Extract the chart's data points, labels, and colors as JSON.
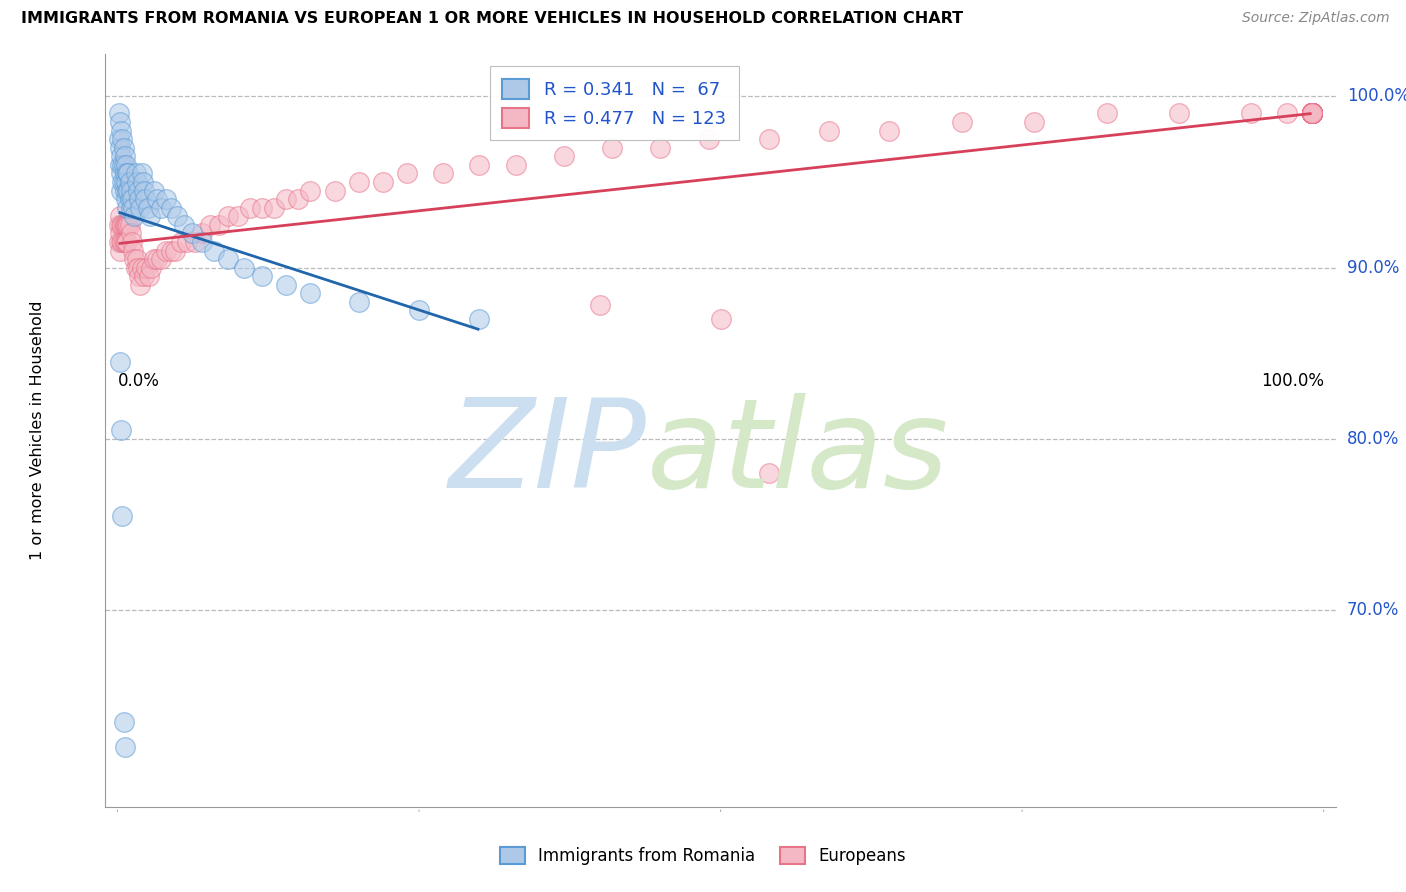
{
  "title": "IMMIGRANTS FROM ROMANIA VS EUROPEAN 1 OR MORE VEHICLES IN HOUSEHOLD CORRELATION CHART",
  "source": "Source: ZipAtlas.com",
  "ylabel": "1 or more Vehicles in Household",
  "ytick_labels": [
    "100.0%",
    "90.0%",
    "80.0%",
    "70.0%"
  ],
  "ytick_values": [
    1.0,
    0.9,
    0.8,
    0.7
  ],
  "xlim": [
    -0.01,
    1.01
  ],
  "ylim": [
    0.585,
    1.025
  ],
  "romania_color": "#5b9bd5",
  "romania_fill": "#aec9e8",
  "european_color": "#e8748a",
  "european_fill": "#f4b8c4",
  "trend_romania_color": "#2166ac",
  "trend_european_color": "#d6405a",
  "romania_R": 0.341,
  "romania_N": 67,
  "european_R": 0.477,
  "european_N": 123,
  "legend_label_romania": "Immigrants from Romania",
  "legend_label_european": "Europeans",
  "marker_size": 200,
  "marker_alpha": 0.55,
  "grid_color": "#bbbbbb",
  "romania_x": [
    0.001,
    0.001,
    0.002,
    0.002,
    0.002,
    0.003,
    0.003,
    0.003,
    0.003,
    0.004,
    0.004,
    0.004,
    0.005,
    0.005,
    0.005,
    0.006,
    0.006,
    0.006,
    0.007,
    0.007,
    0.007,
    0.008,
    0.008,
    0.008,
    0.009,
    0.009,
    0.01,
    0.01,
    0.011,
    0.011,
    0.012,
    0.013,
    0.014,
    0.015,
    0.016,
    0.017,
    0.018,
    0.019,
    0.02,
    0.021,
    0.022,
    0.023,
    0.025,
    0.027,
    0.03,
    0.033,
    0.036,
    0.04,
    0.044,
    0.049,
    0.055,
    0.062,
    0.07,
    0.08,
    0.092,
    0.105,
    0.12,
    0.14,
    0.16,
    0.2,
    0.25,
    0.3,
    0.002,
    0.003,
    0.004,
    0.005,
    0.006
  ],
  "romania_y": [
    0.99,
    0.975,
    0.985,
    0.97,
    0.96,
    0.98,
    0.965,
    0.955,
    0.945,
    0.975,
    0.96,
    0.95,
    0.97,
    0.96,
    0.95,
    0.965,
    0.955,
    0.945,
    0.96,
    0.95,
    0.94,
    0.955,
    0.945,
    0.935,
    0.955,
    0.945,
    0.95,
    0.94,
    0.945,
    0.935,
    0.94,
    0.935,
    0.93,
    0.955,
    0.95,
    0.945,
    0.94,
    0.935,
    0.955,
    0.95,
    0.945,
    0.94,
    0.935,
    0.93,
    0.945,
    0.94,
    0.935,
    0.94,
    0.935,
    0.93,
    0.925,
    0.92,
    0.915,
    0.91,
    0.905,
    0.9,
    0.895,
    0.89,
    0.885,
    0.88,
    0.875,
    0.87,
    0.845,
    0.805,
    0.755,
    0.635,
    0.62
  ],
  "european_x": [
    0.001,
    0.001,
    0.002,
    0.002,
    0.002,
    0.003,
    0.003,
    0.004,
    0.004,
    0.005,
    0.005,
    0.006,
    0.006,
    0.007,
    0.007,
    0.008,
    0.008,
    0.009,
    0.01,
    0.011,
    0.012,
    0.013,
    0.014,
    0.015,
    0.016,
    0.017,
    0.018,
    0.019,
    0.02,
    0.022,
    0.024,
    0.026,
    0.028,
    0.03,
    0.033,
    0.036,
    0.04,
    0.044,
    0.048,
    0.053,
    0.058,
    0.064,
    0.07,
    0.077,
    0.084,
    0.092,
    0.1,
    0.11,
    0.12,
    0.13,
    0.14,
    0.15,
    0.16,
    0.18,
    0.2,
    0.22,
    0.24,
    0.27,
    0.3,
    0.33,
    0.37,
    0.41,
    0.45,
    0.49,
    0.54,
    0.59,
    0.64,
    0.7,
    0.76,
    0.82,
    0.88,
    0.94,
    0.97,
    0.99,
    0.99,
    0.99,
    0.99,
    0.99,
    0.99,
    0.99,
    0.99,
    0.99,
    0.99,
    0.99,
    0.99,
    0.99,
    0.99,
    0.99,
    0.99,
    0.99,
    0.99,
    0.99,
    0.99,
    0.99,
    0.99,
    0.99,
    0.99,
    0.99,
    0.99,
    0.99,
    0.99,
    0.99,
    0.99,
    0.99,
    0.99,
    0.99,
    0.99,
    0.99,
    0.99,
    0.99,
    0.99,
    0.99,
    0.99,
    0.99,
    0.99,
    0.99,
    0.99,
    0.99,
    0.99,
    0.99,
    0.4,
    0.5,
    0.54
  ],
  "european_y": [
    0.925,
    0.915,
    0.93,
    0.92,
    0.91,
    0.925,
    0.915,
    0.925,
    0.915,
    0.925,
    0.915,
    0.925,
    0.915,
    0.925,
    0.915,
    0.925,
    0.915,
    0.925,
    0.925,
    0.92,
    0.915,
    0.91,
    0.905,
    0.9,
    0.905,
    0.9,
    0.895,
    0.89,
    0.9,
    0.895,
    0.9,
    0.895,
    0.9,
    0.905,
    0.905,
    0.905,
    0.91,
    0.91,
    0.91,
    0.915,
    0.915,
    0.915,
    0.92,
    0.925,
    0.925,
    0.93,
    0.93,
    0.935,
    0.935,
    0.935,
    0.94,
    0.94,
    0.945,
    0.945,
    0.95,
    0.95,
    0.955,
    0.955,
    0.96,
    0.96,
    0.965,
    0.97,
    0.97,
    0.975,
    0.975,
    0.98,
    0.98,
    0.985,
    0.985,
    0.99,
    0.99,
    0.99,
    0.99,
    0.99,
    0.99,
    0.99,
    0.99,
    0.99,
    0.99,
    0.99,
    0.99,
    0.99,
    0.99,
    0.99,
    0.99,
    0.99,
    0.99,
    0.99,
    0.99,
    0.99,
    0.99,
    0.99,
    0.99,
    0.99,
    0.99,
    0.99,
    0.99,
    0.99,
    0.99,
    0.99,
    0.99,
    0.99,
    0.99,
    0.99,
    0.99,
    0.99,
    0.99,
    0.99,
    0.99,
    0.99,
    0.99,
    0.99,
    0.99,
    0.99,
    0.99,
    0.99,
    0.99,
    0.99,
    0.99,
    0.99,
    0.878,
    0.87,
    0.78
  ]
}
